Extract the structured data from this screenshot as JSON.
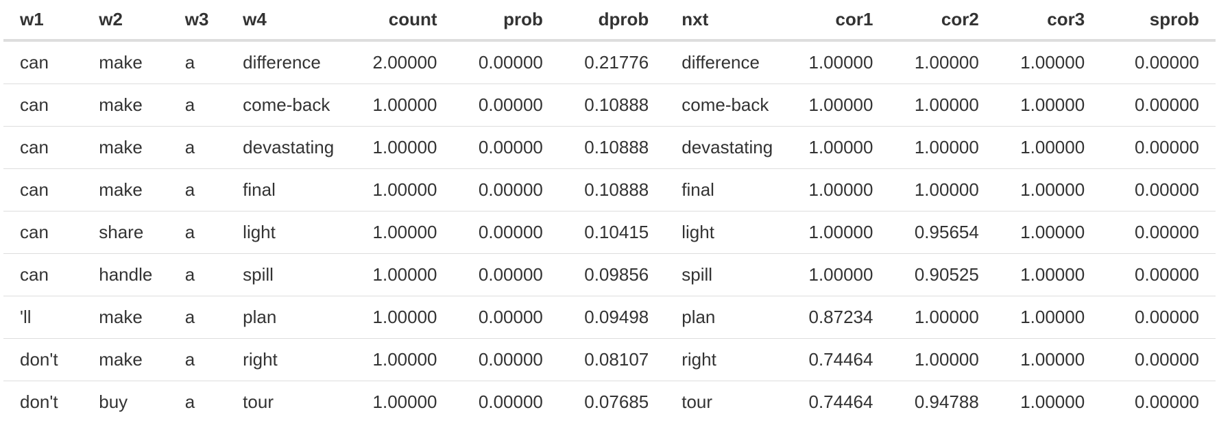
{
  "table": {
    "columns": [
      {
        "key": "w1",
        "label": "w1",
        "align": "l"
      },
      {
        "key": "w2",
        "label": "w2",
        "align": "l"
      },
      {
        "key": "w3",
        "label": "w3",
        "align": "l"
      },
      {
        "key": "w4",
        "label": "w4",
        "align": "l"
      },
      {
        "key": "count",
        "label": "count",
        "align": "r"
      },
      {
        "key": "prob",
        "label": "prob",
        "align": "r"
      },
      {
        "key": "dprob",
        "label": "dprob",
        "align": "r"
      },
      {
        "key": "nxt",
        "label": "nxt",
        "align": "l"
      },
      {
        "key": "cor1",
        "label": "cor1",
        "align": "r"
      },
      {
        "key": "cor2",
        "label": "cor2",
        "align": "r"
      },
      {
        "key": "cor3",
        "label": "cor3",
        "align": "r"
      },
      {
        "key": "sprob",
        "label": "sprob",
        "align": "r"
      }
    ],
    "rows": [
      [
        "can",
        "make",
        "a",
        "difference",
        "2.00000",
        "0.00000",
        "0.21776",
        "difference",
        "1.00000",
        "1.00000",
        "1.00000",
        "0.00000"
      ],
      [
        "can",
        "make",
        "a",
        "come-back",
        "1.00000",
        "0.00000",
        "0.10888",
        "come-back",
        "1.00000",
        "1.00000",
        "1.00000",
        "0.00000"
      ],
      [
        "can",
        "make",
        "a",
        "devastating",
        "1.00000",
        "0.00000",
        "0.10888",
        "devastating",
        "1.00000",
        "1.00000",
        "1.00000",
        "0.00000"
      ],
      [
        "can",
        "make",
        "a",
        "final",
        "1.00000",
        "0.00000",
        "0.10888",
        "final",
        "1.00000",
        "1.00000",
        "1.00000",
        "0.00000"
      ],
      [
        "can",
        "share",
        "a",
        "light",
        "1.00000",
        "0.00000",
        "0.10415",
        "light",
        "1.00000",
        "0.95654",
        "1.00000",
        "0.00000"
      ],
      [
        "can",
        "handle",
        "a",
        "spill",
        "1.00000",
        "0.00000",
        "0.09856",
        "spill",
        "1.00000",
        "0.90525",
        "1.00000",
        "0.00000"
      ],
      [
        "'ll",
        "make",
        "a",
        "plan",
        "1.00000",
        "0.00000",
        "0.09498",
        "plan",
        "0.87234",
        "1.00000",
        "1.00000",
        "0.00000"
      ],
      [
        "don't",
        "make",
        "a",
        "right",
        "1.00000",
        "0.00000",
        "0.08107",
        "right",
        "0.74464",
        "1.00000",
        "1.00000",
        "0.00000"
      ],
      [
        "don't",
        "buy",
        "a",
        "tour",
        "1.00000",
        "0.00000",
        "0.07685",
        "tour",
        "0.74464",
        "0.94788",
        "1.00000",
        "0.00000"
      ]
    ]
  }
}
